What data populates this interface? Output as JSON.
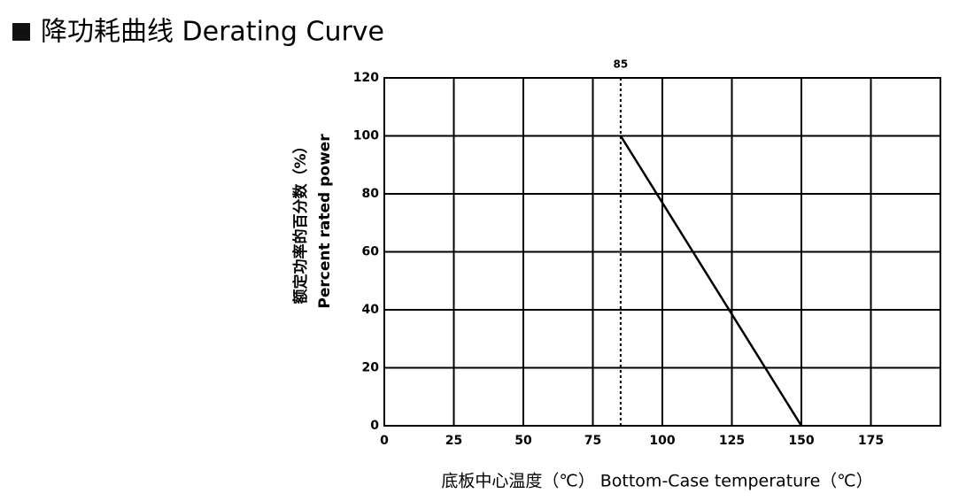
{
  "chart_data": {
    "type": "line",
    "title": "降功耗曲线 Derating Curve",
    "x_label": "底板中心温度（℃）   Bottom-Case  temperature（℃）",
    "y_label": [
      "额定功率的百分数（%）",
      "Percent    rated    power"
    ],
    "x": [
      85,
      150
    ],
    "values": [
      100,
      0
    ],
    "color": "#000000",
    "vline": 85,
    "xlim": [
      0,
      200
    ],
    "xticks": [
      0,
      25,
      50,
      75,
      100,
      125,
      150,
      175
    ],
    "ylim": [
      0,
      120
    ],
    "yticks": [
      0,
      20,
      40,
      60,
      80,
      100,
      120
    ],
    "grid": true
  }
}
